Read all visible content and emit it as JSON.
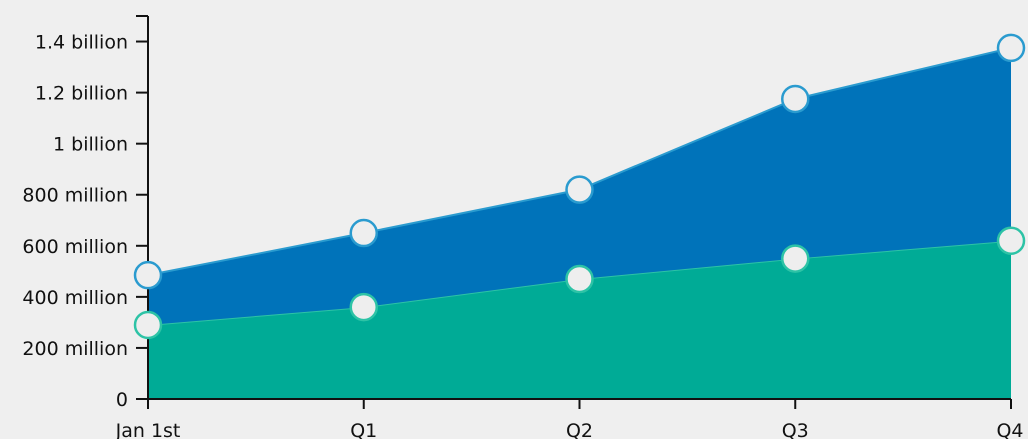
{
  "chart_data": {
    "type": "area",
    "stacked": true,
    "title": "",
    "xlabel": "",
    "ylabel": "",
    "categories": [
      "Jan 1st",
      "Q1",
      "Q2",
      "Q3",
      "Q4"
    ],
    "ylim": [
      0,
      1500000000
    ],
    "yticks": [
      0,
      200000000,
      400000000,
      600000000,
      800000000,
      1000000000,
      1200000000,
      1400000000
    ],
    "ytick_labels": [
      "0",
      "200 million",
      "400 million",
      "600 million",
      "800 million",
      "1 billion",
      "1.2 billion",
      "1.4 billion"
    ],
    "grid": false,
    "legend": "none",
    "series": [
      {
        "values": [
          290000000,
          360000000,
          470000000,
          550000000,
          620000000
        ],
        "color": "#00ab96",
        "marker_stroke": "#2dc3a6"
      },
      {
        "values": [
          195000000,
          290000000,
          350000000,
          625000000,
          755000000
        ],
        "color": "#0073ba",
        "marker_stroke": "#2a9bcf"
      }
    ],
    "marker_fill": "#eeeeee"
  }
}
